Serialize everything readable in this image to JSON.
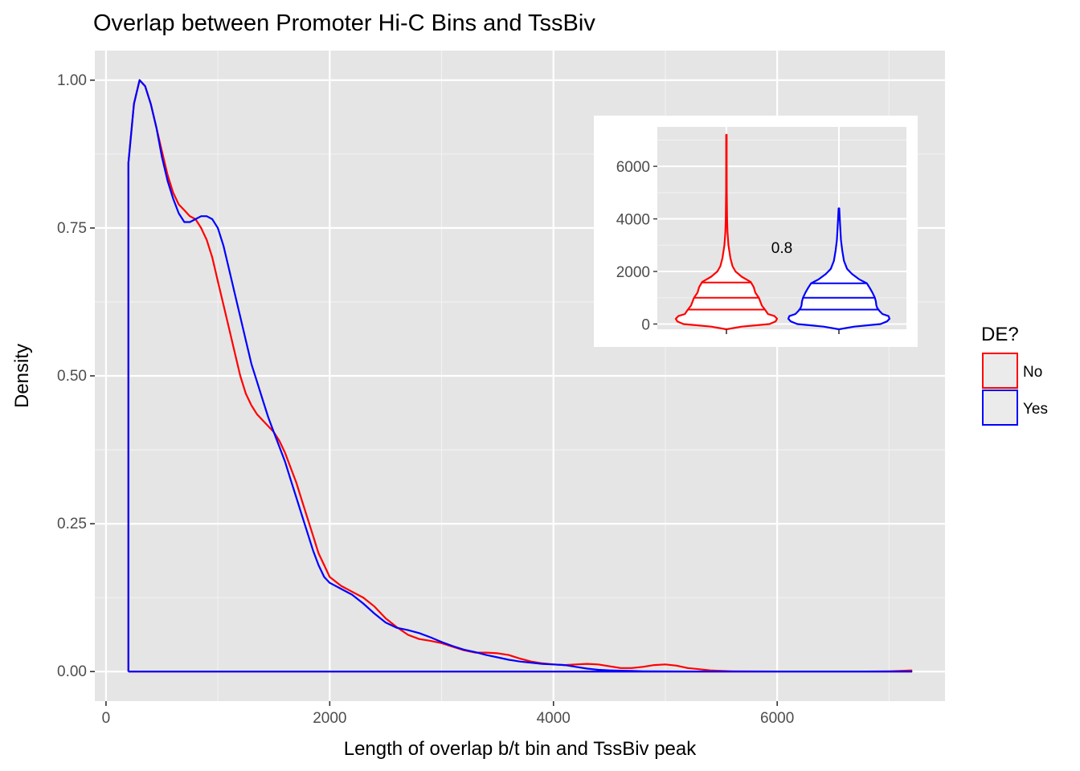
{
  "chart_data": [
    {
      "type": "line",
      "title": "Overlap between Promoter Hi-C Bins and TssBiv",
      "xlabel": "Length of overlap b/t bin and TssBiv peak",
      "ylabel": "Density",
      "xlim": [
        -100,
        7500
      ],
      "ylim": [
        -0.05,
        1.05
      ],
      "x_ticks": [
        0,
        2000,
        4000,
        6000
      ],
      "y_ticks": [
        0,
        0.25,
        0.5,
        0.75,
        1.0
      ],
      "x_tick_labels": [
        "0",
        "2000",
        "4000",
        "6000"
      ],
      "y_tick_labels": [
        "0.00",
        "0.25",
        "0.50",
        "0.75",
        "1.00"
      ],
      "grid": true,
      "legend": {
        "title": "DE?",
        "position": "right",
        "entries": [
          {
            "label": "No",
            "color": "#ff0000"
          },
          {
            "label": "Yes",
            "color": "#0000ff"
          }
        ]
      },
      "series": [
        {
          "color": "#ff0000",
          "x": [
            200,
            200,
            250,
            300,
            350,
            400,
            450,
            500,
            550,
            600,
            650,
            700,
            750,
            800,
            850,
            900,
            950,
            1000,
            1050,
            1100,
            1150,
            1200,
            1250,
            1300,
            1350,
            1400,
            1450,
            1500,
            1550,
            1600,
            1650,
            1700,
            1750,
            1800,
            1850,
            1900,
            1950,
            2000,
            2100,
            2200,
            2300,
            2400,
            2500,
            2600,
            2700,
            2800,
            2900,
            3000,
            3100,
            3200,
            3300,
            3400,
            3500,
            3600,
            3700,
            3800,
            3900,
            4000,
            4100,
            4200,
            4300,
            4400,
            4500,
            4600,
            4700,
            4800,
            4900,
            5000,
            5100,
            5200,
            5300,
            5400,
            5500,
            5600,
            5800,
            6000,
            6200,
            6400,
            6600,
            6800,
            7000,
            7100,
            7200,
            7200,
            200
          ],
          "y": [
            0,
            0.86,
            0.96,
            1.0,
            0.99,
            0.96,
            0.92,
            0.88,
            0.84,
            0.81,
            0.79,
            0.78,
            0.77,
            0.765,
            0.75,
            0.73,
            0.7,
            0.66,
            0.62,
            0.58,
            0.54,
            0.5,
            0.47,
            0.45,
            0.435,
            0.425,
            0.415,
            0.405,
            0.39,
            0.37,
            0.345,
            0.32,
            0.29,
            0.26,
            0.23,
            0.2,
            0.18,
            0.16,
            0.145,
            0.135,
            0.125,
            0.11,
            0.09,
            0.075,
            0.062,
            0.055,
            0.052,
            0.048,
            0.042,
            0.036,
            0.032,
            0.032,
            0.031,
            0.028,
            0.022,
            0.017,
            0.014,
            0.012,
            0.011,
            0.012,
            0.013,
            0.012,
            0.009,
            0.006,
            0.006,
            0.008,
            0.011,
            0.012,
            0.01,
            0.006,
            0.004,
            0.002,
            0.001,
            0.0005,
            0.0002,
            0.0001,
            0.0001,
            0.0001,
            0.0001,
            0.0001,
            0.0005,
            0.001,
            0.002,
            0,
            0
          ]
        },
        {
          "color": "#0000ff",
          "x": [
            200,
            200,
            250,
            300,
            350,
            400,
            450,
            500,
            550,
            600,
            650,
            700,
            750,
            800,
            850,
            900,
            950,
            1000,
            1050,
            1100,
            1150,
            1200,
            1250,
            1300,
            1350,
            1400,
            1450,
            1500,
            1550,
            1600,
            1650,
            1700,
            1750,
            1800,
            1850,
            1900,
            1950,
            2000,
            2100,
            2200,
            2300,
            2400,
            2500,
            2600,
            2700,
            2800,
            2900,
            3000,
            3100,
            3200,
            3300,
            3400,
            3500,
            3600,
            3700,
            3800,
            3900,
            4000,
            4100,
            4200,
            4300,
            4400,
            4500,
            4600,
            4700,
            4800,
            5000,
            5200,
            5400,
            5600,
            5800,
            6000,
            6200,
            6400,
            6600,
            6800,
            7000,
            7200,
            7200,
            200
          ],
          "y": [
            0,
            0.86,
            0.96,
            1.0,
            0.99,
            0.96,
            0.92,
            0.87,
            0.83,
            0.8,
            0.775,
            0.76,
            0.76,
            0.765,
            0.77,
            0.77,
            0.765,
            0.75,
            0.72,
            0.68,
            0.64,
            0.6,
            0.56,
            0.52,
            0.49,
            0.46,
            0.43,
            0.405,
            0.38,
            0.355,
            0.325,
            0.295,
            0.265,
            0.235,
            0.205,
            0.18,
            0.16,
            0.15,
            0.14,
            0.13,
            0.115,
            0.098,
            0.083,
            0.074,
            0.07,
            0.065,
            0.058,
            0.05,
            0.043,
            0.037,
            0.033,
            0.028,
            0.024,
            0.02,
            0.017,
            0.015,
            0.013,
            0.012,
            0.011,
            0.008,
            0.005,
            0.003,
            0.002,
            0.0015,
            0.001,
            0.0005,
            0.0002,
            0.0001,
            0.0001,
            0.0001,
            0.0001,
            0.0001,
            0.0001,
            0.0001,
            0.0001,
            0.0001,
            0.0001,
            0.0001,
            0,
            0
          ]
        }
      ]
    },
    {
      "type": "violin",
      "ylim": [
        -200,
        7500
      ],
      "y_ticks": [
        0,
        2000,
        4000,
        6000
      ],
      "y_tick_labels": [
        "0",
        "2000",
        "4000",
        "6000"
      ],
      "categories": [
        "No",
        "Yes"
      ],
      "grid": true,
      "annotation": "0.8",
      "series": [
        {
          "color": "#ff0000",
          "quantiles": [
            550,
            1000,
            1580
          ],
          "profile": [
            [
              -200,
              0
            ],
            [
              -100,
              0.3
            ],
            [
              0,
              0.85
            ],
            [
              100,
              0.97
            ],
            [
              200,
              1.0
            ],
            [
              300,
              0.95
            ],
            [
              380,
              0.82
            ],
            [
              500,
              0.78
            ],
            [
              600,
              0.74
            ],
            [
              700,
              0.7
            ],
            [
              850,
              0.67
            ],
            [
              1000,
              0.64
            ],
            [
              1200,
              0.57
            ],
            [
              1400,
              0.54
            ],
            [
              1600,
              0.48
            ],
            [
              1800,
              0.3
            ],
            [
              2000,
              0.18
            ],
            [
              2200,
              0.12
            ],
            [
              2500,
              0.08
            ],
            [
              3000,
              0.04
            ],
            [
              3500,
              0.02
            ],
            [
              4000,
              0.012
            ],
            [
              5000,
              0.007
            ],
            [
              6000,
              0.005
            ],
            [
              7200,
              0.004
            ]
          ]
        },
        {
          "color": "#0000ff",
          "quantiles": [
            550,
            1000,
            1550
          ],
          "profile": [
            [
              -200,
              0
            ],
            [
              -100,
              0.3
            ],
            [
              0,
              0.82
            ],
            [
              100,
              0.95
            ],
            [
              200,
              1.0
            ],
            [
              300,
              0.98
            ],
            [
              380,
              0.86
            ],
            [
              500,
              0.8
            ],
            [
              600,
              0.76
            ],
            [
              700,
              0.74
            ],
            [
              850,
              0.73
            ],
            [
              1000,
              0.71
            ],
            [
              1200,
              0.66
            ],
            [
              1400,
              0.6
            ],
            [
              1550,
              0.55
            ],
            [
              1700,
              0.4
            ],
            [
              1900,
              0.26
            ],
            [
              2100,
              0.16
            ],
            [
              2400,
              0.1
            ],
            [
              2800,
              0.065
            ],
            [
              3200,
              0.04
            ],
            [
              3700,
              0.025
            ],
            [
              4100,
              0.015
            ],
            [
              4400,
              0.006
            ]
          ]
        }
      ]
    }
  ]
}
